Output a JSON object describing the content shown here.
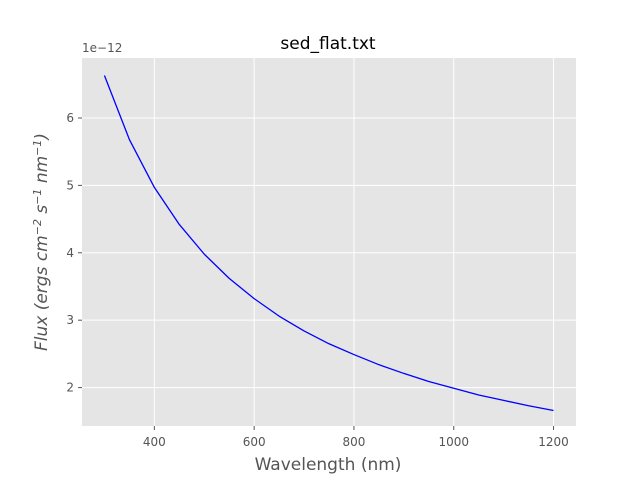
{
  "chart_data": {
    "type": "line",
    "title": "sed_flat.txt",
    "xlabel": "Wavelength (nm)",
    "ylabel": {
      "parts": [
        {
          "text": "Flux (ergs cm",
          "sup": false
        },
        {
          "text": "−2",
          "sup": true
        },
        {
          "text": " s",
          "sup": false
        },
        {
          "text": "−1",
          "sup": true
        },
        {
          "text": " nm",
          "sup": false
        },
        {
          "text": "−1",
          "sup": true
        },
        {
          "text": ")",
          "sup": false
        }
      ]
    },
    "y_offset_label": "1e−12",
    "xlim": [
      255,
      1245
    ],
    "ylim": [
      1.43,
      6.89
    ],
    "xticks": [
      400,
      600,
      800,
      1000,
      1200
    ],
    "xtick_labels": [
      "400",
      "600",
      "800",
      "1000",
      "1200"
    ],
    "yticks": [
      2,
      3,
      4,
      5,
      6
    ],
    "ytick_labels": [
      "2",
      "3",
      "4",
      "5",
      "6"
    ],
    "grid": true,
    "background_color": "#e5e5e5",
    "grid_color": "#ffffff",
    "series": [
      {
        "color": "#0000ff",
        "x": [
          300,
          350,
          400,
          450,
          500,
          550,
          600,
          650,
          700,
          750,
          800,
          850,
          900,
          950,
          1000,
          1050,
          1100,
          1150,
          1200
        ],
        "y": [
          6.63,
          5.68,
          4.97,
          4.42,
          3.98,
          3.62,
          3.32,
          3.06,
          2.84,
          2.65,
          2.49,
          2.34,
          2.21,
          2.09,
          1.99,
          1.89,
          1.81,
          1.73,
          1.66
        ]
      }
    ]
  }
}
